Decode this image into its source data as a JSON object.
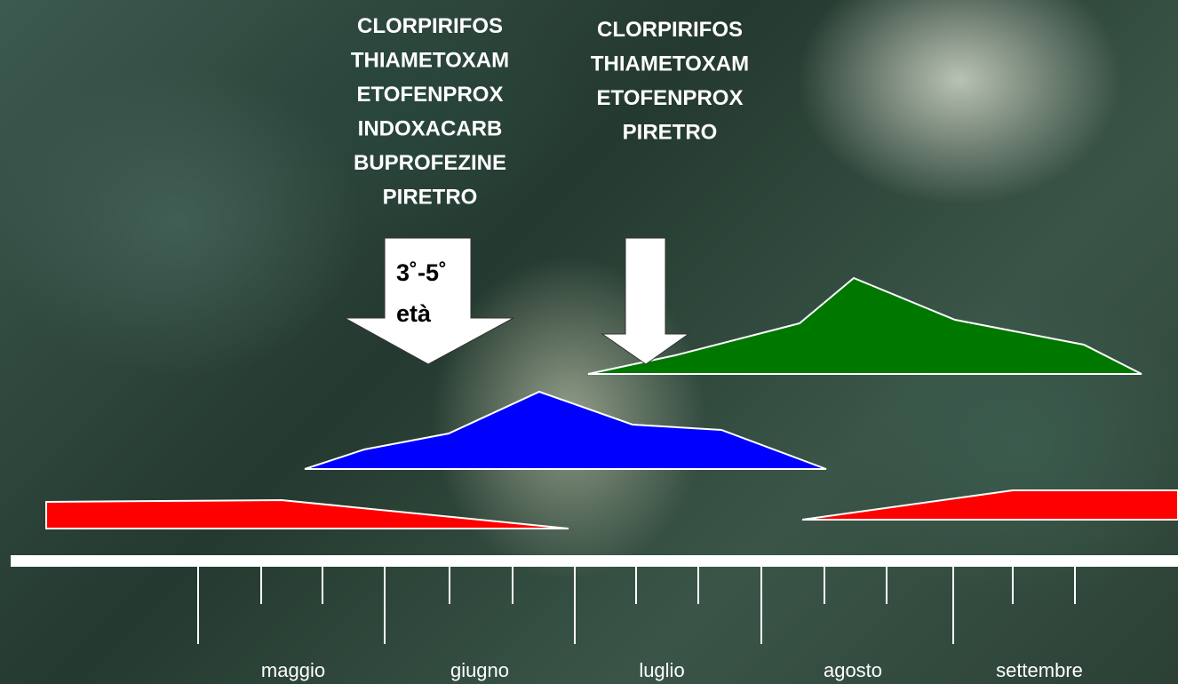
{
  "treatments": [
    {
      "products": [
        "CLORPIRIFOS",
        "THIAMETOXAM",
        "ETOFENPROX",
        "INDOXACARB",
        "BUPROFEZINE",
        "PIRETRO"
      ]
    },
    {
      "products": [
        "CLORPIRIFOS",
        "THIAMETOXAM",
        "ETOFENPROX",
        "PIRETRO"
      ]
    }
  ],
  "arrow_label": {
    "line1": "3˚-5˚",
    "line2": "età"
  },
  "months": [
    "maggio",
    "giugno",
    "luglio",
    "agosto",
    "settembre"
  ]
}
